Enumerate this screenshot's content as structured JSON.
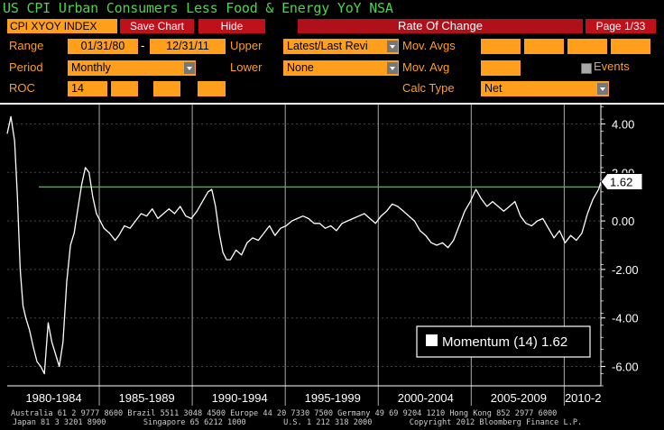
{
  "title": "US CPI Urban Consumers Less Food & Energy YoY NSA",
  "toolbar": {
    "ticker": "CPI XYOY INDEX",
    "save_chart": "Save Chart",
    "hide": "Hide",
    "study": "Rate Of Change",
    "page": "Page 1/33"
  },
  "controls": {
    "range_label": "Range",
    "range_start": "01/31/80",
    "range_sep": "-",
    "range_end": "12/31/11",
    "upper_label": "Upper",
    "upper_value": "Latest/Last Revi",
    "mov_avgs_label": "Mov. Avgs",
    "period_label": "Period",
    "period_value": "Monthly",
    "lower_label": "Lower",
    "lower_value": "None",
    "mov_avg_label": "Mov. Avg",
    "events_label": "Events",
    "roc_label": "ROC",
    "roc_value": "14",
    "calc_type_label": "Calc Type",
    "calc_type_value": "Net"
  },
  "chart_data": {
    "type": "line",
    "x_range": [
      1980.0,
      2011.92
    ],
    "ylim": [
      -6.8,
      4.8
    ],
    "yticks": [
      "4.00",
      "2.00",
      "0.00",
      "-2.00",
      "-4.00",
      "-6.00"
    ],
    "ytick_values": [
      4,
      2,
      0,
      -2,
      -4,
      -6
    ],
    "xtick_labels": [
      "1980-1984",
      "1985-1989",
      "1990-1994",
      "1995-1999",
      "2000-2004",
      "2005-2009",
      "2010-2"
    ],
    "reference_line": 1.4,
    "last_value": "1.62",
    "legend": "Momentum  (14) 1.62",
    "series": [
      {
        "color": "#ffffff",
        "x": [
          1980.0,
          1980.2,
          1980.4,
          1980.55,
          1980.7,
          1980.85,
          1981.0,
          1981.2,
          1981.4,
          1981.6,
          1981.8,
          1982.0,
          1982.2,
          1982.4,
          1982.6,
          1982.8,
          1983.0,
          1983.2,
          1983.4,
          1983.6,
          1983.8,
          1984.0,
          1984.2,
          1984.4,
          1984.6,
          1984.8,
          1985.0,
          1985.2,
          1985.5,
          1985.8,
          1986.0,
          1986.3,
          1986.6,
          1986.9,
          1987.2,
          1987.5,
          1987.8,
          1988.1,
          1988.4,
          1988.7,
          1989.0,
          1989.3,
          1989.6,
          1989.9,
          1990.2,
          1990.5,
          1990.8,
          1991.0,
          1991.2,
          1991.4,
          1991.6,
          1991.8,
          1992.0,
          1992.3,
          1992.6,
          1992.9,
          1993.2,
          1993.5,
          1993.8,
          1994.1,
          1994.4,
          1994.7,
          1995.0,
          1995.3,
          1995.6,
          1995.9,
          1996.2,
          1996.5,
          1996.8,
          1997.1,
          1997.4,
          1997.7,
          1998.0,
          1998.3,
          1998.6,
          1998.9,
          1999.2,
          1999.5,
          1999.8,
          2000.1,
          2000.4,
          2000.7,
          2001.0,
          2001.3,
          2001.6,
          2001.9,
          2002.2,
          2002.5,
          2002.8,
          2003.1,
          2003.4,
          2003.7,
          2004.0,
          2004.3,
          2004.6,
          2004.9,
          2005.2,
          2005.5,
          2005.8,
          2006.1,
          2006.4,
          2006.7,
          2007.0,
          2007.3,
          2007.6,
          2007.9,
          2008.2,
          2008.5,
          2008.8,
          2009.1,
          2009.4,
          2009.7,
          2010.0,
          2010.3,
          2010.6,
          2010.9,
          2011.2,
          2011.5,
          2011.8,
          2011.92
        ],
        "y": [
          3.6,
          4.3,
          3.3,
          1.0,
          -2.0,
          -3.5,
          -4.0,
          -4.5,
          -5.2,
          -5.8,
          -6.0,
          -6.3,
          -4.2,
          -5.0,
          -5.5,
          -6.0,
          -5.0,
          -2.5,
          -1.0,
          -0.5,
          0.5,
          1.5,
          2.2,
          2.0,
          1.0,
          0.3,
          0.0,
          -0.3,
          -0.5,
          -0.8,
          -0.6,
          -0.2,
          -0.3,
          0.0,
          0.3,
          0.2,
          0.5,
          0.1,
          0.3,
          0.5,
          0.3,
          0.6,
          0.2,
          0.1,
          0.4,
          0.8,
          1.2,
          1.3,
          0.6,
          -0.5,
          -1.3,
          -1.6,
          -1.6,
          -1.2,
          -1.4,
          -0.9,
          -0.7,
          -0.8,
          -0.5,
          -0.2,
          -0.6,
          -0.3,
          -0.2,
          0.0,
          0.1,
          0.2,
          0.1,
          -0.1,
          -0.1,
          -0.3,
          -0.2,
          -0.4,
          -0.1,
          0.0,
          0.1,
          0.2,
          0.3,
          0.1,
          -0.1,
          0.2,
          0.4,
          0.7,
          0.6,
          0.4,
          0.2,
          0.0,
          -0.4,
          -0.6,
          -0.9,
          -1.0,
          -0.9,
          -1.1,
          -0.8,
          -0.2,
          0.4,
          0.8,
          1.3,
          0.9,
          0.6,
          0.8,
          0.6,
          0.4,
          0.6,
          0.8,
          0.2,
          -0.1,
          -0.2,
          0.0,
          0.1,
          -0.3,
          -0.7,
          -0.4,
          -0.9,
          -0.6,
          -0.8,
          -0.5,
          0.3,
          0.9,
          1.3,
          1.62
        ]
      }
    ]
  },
  "footer": {
    "line1": "Australia 61 2 9777 8600 Brazil 5511 3048 4500 Europe 44 20 7330 7500 Germany 49 69 9204 1210 Hong Kong 852 2977 6000",
    "line2": "Japan 81 3 3201 8900        Singapore 65 6212 1000        U.S. 1 212 318 2000        Copyright 2012 Bloomberg Finance L.P."
  },
  "colors": {
    "accent": "#ff9f1c",
    "button": "#c0101a",
    "title": "#4fd24f",
    "reference": "#34c934",
    "line": "#ffffff"
  }
}
